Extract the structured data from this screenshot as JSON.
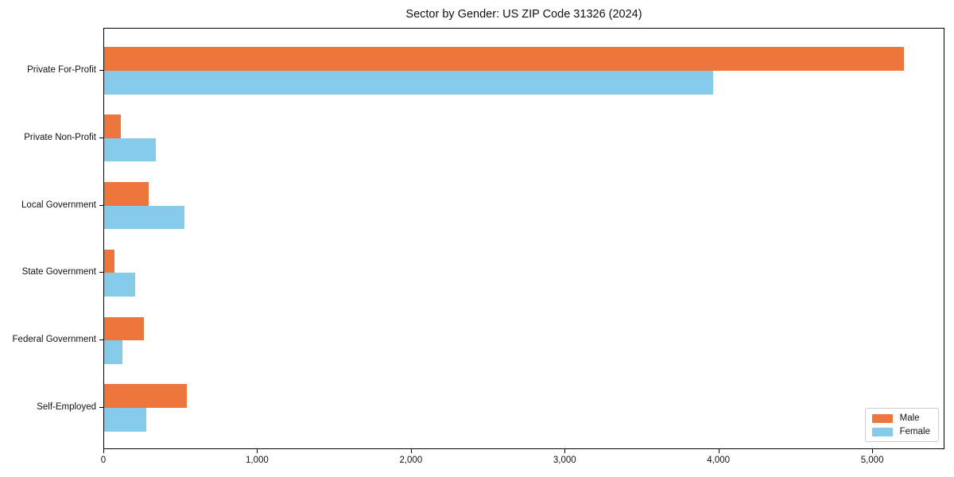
{
  "title": "Sector by Gender: US ZIP Code 31326 (2024)",
  "chart_data": {
    "type": "bar",
    "orientation": "horizontal",
    "title": "Sector by Gender: US ZIP Code 31326 (2024)",
    "categories": [
      "Private For-Profit",
      "Private Non-Profit",
      "Local Government",
      "State Government",
      "Federal Government",
      "Self-Employed"
    ],
    "series": [
      {
        "name": "Male",
        "color": "#ec763c",
        "values": [
          5200,
          110,
          290,
          65,
          260,
          540
        ]
      },
      {
        "name": "Female",
        "color": "#85cbe9",
        "values": [
          3960,
          335,
          520,
          200,
          120,
          275
        ]
      }
    ],
    "xlabel": "",
    "ylabel": "",
    "xlim": [
      0,
      5470
    ],
    "xticks": [
      0,
      1000,
      2000,
      3000,
      4000,
      5000
    ],
    "xtick_labels": [
      "0",
      "1,000",
      "2,000",
      "3,000",
      "4,000",
      "5,000"
    ],
    "legend_position": "lower right",
    "grid": false
  },
  "colors": {
    "male": "#ec763c",
    "female": "#85cbe9",
    "spine": "#000000",
    "legend_border": "#cccccc"
  }
}
